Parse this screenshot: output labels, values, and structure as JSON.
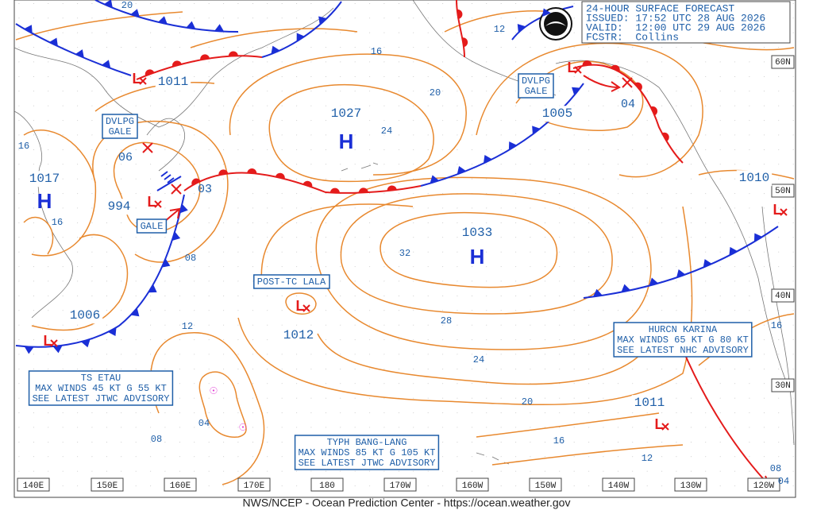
{
  "header": {
    "title": "24-HOUR SURFACE FORECAST",
    "issued": "ISSUED: 17:52 UTC 28 AUG 2026",
    "valid": "VALID:  12:00 UTC 29 AUG 2026",
    "forecaster": "FCSTR:  Collins"
  },
  "footer": "NWS/NCEP - Ocean Prediction Center - https://ocean.weather.gov",
  "longitude_labels": [
    "140E",
    "150E",
    "160E",
    "170E",
    "180",
    "170W",
    "160W",
    "150W",
    "140W",
    "130W",
    "120W"
  ],
  "latitude_labels": [
    "60N",
    "50N",
    "40N",
    "30N"
  ],
  "pressure_centers": [
    {
      "type": "H",
      "value": "1027"
    },
    {
      "type": "H",
      "value": "1033"
    },
    {
      "type": "H",
      "value": "1017"
    },
    {
      "type": "L",
      "value": "1011"
    },
    {
      "type": "L",
      "value": "1005"
    },
    {
      "type": "L",
      "value": "994"
    },
    {
      "type": "L",
      "value": "1006"
    },
    {
      "type": "L",
      "value": "1012"
    },
    {
      "type": "L",
      "value": "1011"
    },
    {
      "type": "L",
      "value": "1010"
    }
  ],
  "forecast_pressures": [
    "03",
    "04",
    "06"
  ],
  "isobar_labels": [
    "20",
    "16",
    "12",
    "20",
    "24",
    "16",
    "16",
    "08",
    "32",
    "12",
    "28",
    "24",
    "20",
    "16",
    "12",
    "08",
    "04",
    "16",
    "08",
    "04"
  ],
  "warnings": [
    {
      "lines": [
        "DVLPG",
        "GALE"
      ]
    },
    {
      "lines": [
        "DVLPG",
        "GALE"
      ]
    },
    {
      "lines": [
        "GALE"
      ]
    },
    {
      "lines": [
        "POST-TC LALA"
      ]
    }
  ],
  "advisories": [
    {
      "lines": [
        "TS ETAU",
        "MAX WINDS 45 KT G 55 KT",
        "SEE LATEST JTWC ADVISORY"
      ]
    },
    {
      "lines": [
        "TYPH BANG-LANG",
        "MAX WINDS 85 KT G 105 KT",
        "SEE LATEST JTWC ADVISORY"
      ]
    },
    {
      "lines": [
        "HURCN KARINA",
        "MAX WINDS 65 KT G 80 KT",
        "SEE LATEST NHC ADVISORY"
      ]
    }
  ]
}
